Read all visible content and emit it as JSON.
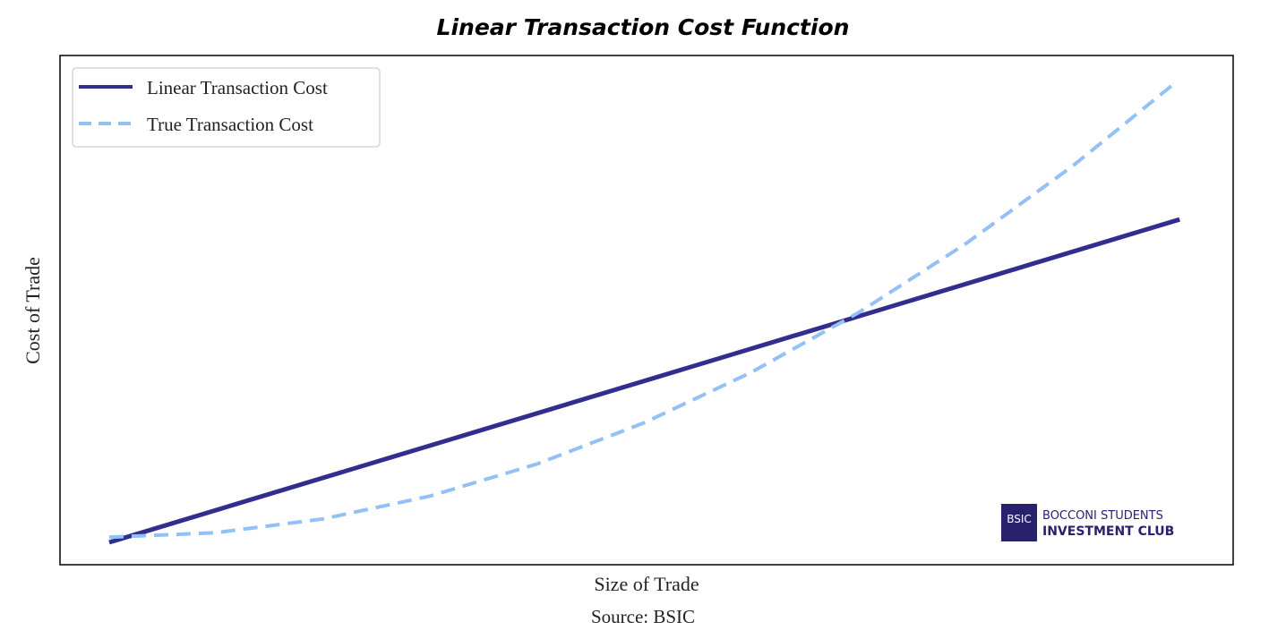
{
  "chart_data": {
    "type": "line",
    "title": "Linear Transaction Cost Function",
    "xlabel": "Size of Trade",
    "ylabel": "Cost of Trade",
    "xlim": [
      -0.46,
      10.5
    ],
    "ylim": [
      0,
      100
    ],
    "grid": false,
    "legend_position": "top-left",
    "series": [
      {
        "name": "Linear Transaction Cost",
        "style": "solid",
        "color": "#312e8f",
        "x": [
          0,
          10
        ],
        "y": [
          4.4,
          67.8
        ]
      },
      {
        "name": "True Transaction Cost",
        "style": "dashed",
        "color": "#93c0f7",
        "x": [
          0,
          1,
          2,
          3,
          4,
          5,
          6,
          7,
          8,
          9,
          9.94
        ],
        "y": [
          5.4,
          6.3,
          9.0,
          13.5,
          19.8,
          27.9,
          37.8,
          49.5,
          63.0,
          78.3,
          94.3
        ]
      }
    ]
  },
  "source": "Source: BSIC",
  "logo": {
    "badge": "BSIC",
    "line1": "BOCCONI STUDENTS",
    "line2": "INVESTMENT CLUB"
  }
}
